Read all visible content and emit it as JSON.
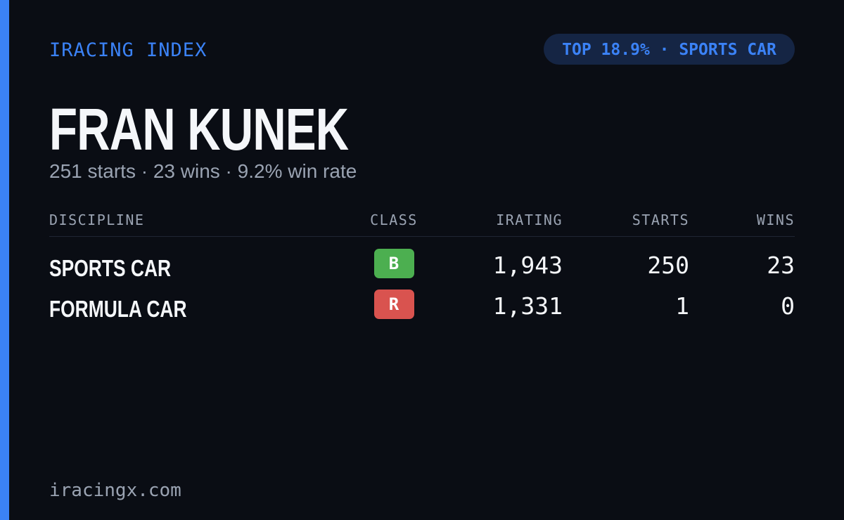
{
  "header": {
    "brand": "IRACING INDEX",
    "badge": "TOP 18.9% · SPORTS CAR"
  },
  "name": "FRAN KUNEK",
  "summary": "251 starts · 23 wins · 9.2% win rate",
  "table": {
    "columns": [
      "DISCIPLINE",
      "CLASS",
      "IRATING",
      "STARTS",
      "WINS"
    ],
    "rows": [
      [
        "SPORTS CAR",
        "B",
        "1,943",
        "250",
        "23"
      ],
      [
        "FORMULA CAR",
        "R",
        "1,331",
        "1",
        "0"
      ]
    ]
  },
  "footer": "iracingx.com"
}
